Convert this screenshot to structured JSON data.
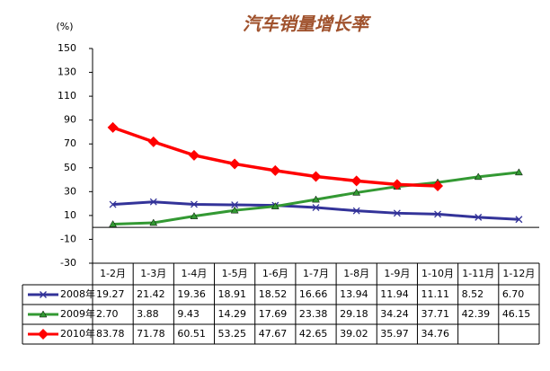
{
  "chart_data": {
    "type": "line",
    "title": "汽车销量增长率",
    "y_label": "(%)",
    "categories": [
      "1-2月",
      "1-3月",
      "1-4月",
      "1-5月",
      "1-6月",
      "1-7月",
      "1-8月",
      "1-9月",
      "1-10月",
      "1-11月",
      "1-12月"
    ],
    "series": [
      {
        "name": "2008年",
        "color": "#333399",
        "marker": "x",
        "values": [
          19.27,
          21.42,
          19.36,
          18.91,
          18.52,
          16.66,
          13.94,
          11.94,
          11.11,
          8.52,
          6.7
        ],
        "value_labels": [
          "19.27",
          "21.42",
          "19.36",
          "18.91",
          "18.52",
          "16.66",
          "13.94",
          "11.94",
          "11.11",
          "8.52",
          "6.70"
        ]
      },
      {
        "name": "2009年",
        "color": "#339933",
        "marker": "triangle",
        "values": [
          2.7,
          3.88,
          9.43,
          14.29,
          17.69,
          23.38,
          29.18,
          34.24,
          37.71,
          42.39,
          46.15
        ],
        "value_labels": [
          "2.70",
          "3.88",
          "9.43",
          "14.29",
          "17.69",
          "23.38",
          "29.18",
          "34.24",
          "37.71",
          "42.39",
          "46.15"
        ]
      },
      {
        "name": "2010年",
        "color": "#ff0000",
        "marker": "diamond",
        "values": [
          83.78,
          71.78,
          60.51,
          53.25,
          47.67,
          42.65,
          39.02,
          35.97,
          34.76,
          null,
          null
        ],
        "value_labels": [
          "83.78",
          "71.78",
          "60.51",
          "53.25",
          "47.67",
          "42.65",
          "39.02",
          "35.97",
          "34.76",
          null,
          null
        ]
      }
    ],
    "ylim": [
      -30,
      150
    ],
    "yticks": [
      -30,
      -10,
      10,
      30,
      50,
      70,
      90,
      110,
      130,
      150
    ],
    "grid": false
  }
}
